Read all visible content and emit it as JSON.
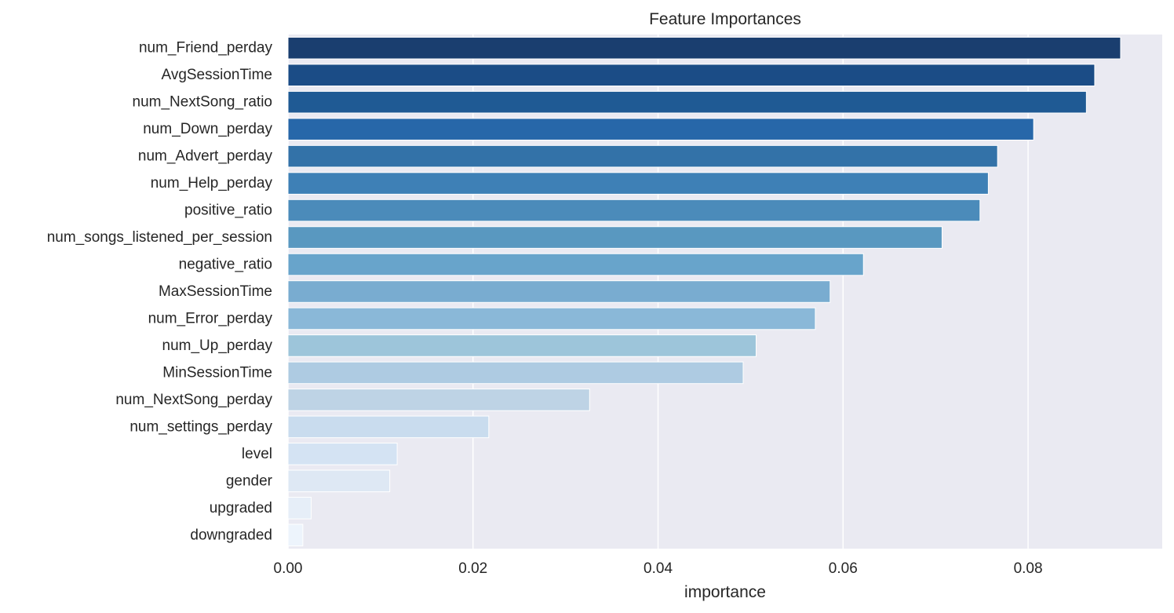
{
  "chart_data": {
    "type": "bar",
    "orientation": "horizontal",
    "title": "Feature Importances",
    "xlabel": "importance",
    "ylabel": "",
    "xlim": [
      0,
      0.0945
    ],
    "xticks": [
      "0.00",
      "0.02",
      "0.04",
      "0.06",
      "0.08"
    ],
    "xtick_values": [
      0,
      0.02,
      0.04,
      0.06,
      0.08
    ],
    "grid": true,
    "background": "#eaeaf2",
    "colormap": "Blues_r",
    "categories": [
      "num_Friend_perday",
      "AvgSessionTime",
      "num_NextSong_ratio",
      "num_Down_perday",
      "num_Advert_perday",
      "num_Help_perday",
      "positive_ratio",
      "num_songs_listened_per_session",
      "negative_ratio",
      "MaxSessionTime",
      "num_Error_perday",
      "num_Up_perday",
      "MinSessionTime",
      "num_NextSong_perday",
      "num_settings_perday",
      "level",
      "gender",
      "upgraded",
      "downgraded"
    ],
    "values": [
      0.09,
      0.0872,
      0.0863,
      0.0806,
      0.0767,
      0.0757,
      0.0748,
      0.0707,
      0.0622,
      0.0586,
      0.057,
      0.0506,
      0.0492,
      0.0326,
      0.0217,
      0.0118,
      0.011,
      0.0025,
      0.0016
    ],
    "colors": [
      "#1a3e6f",
      "#1b4c86",
      "#1f5a94",
      "#2767a9",
      "#3372a8",
      "#3e80b6",
      "#4b8bba",
      "#5998c0",
      "#68a4cb",
      "#79acd0",
      "#8ab8d8",
      "#9dc5da",
      "#aecbe2",
      "#bed3e5",
      "#c9dcee",
      "#d4e3f3",
      "#dee8f4",
      "#e6eef8",
      "#edf4fc"
    ]
  }
}
